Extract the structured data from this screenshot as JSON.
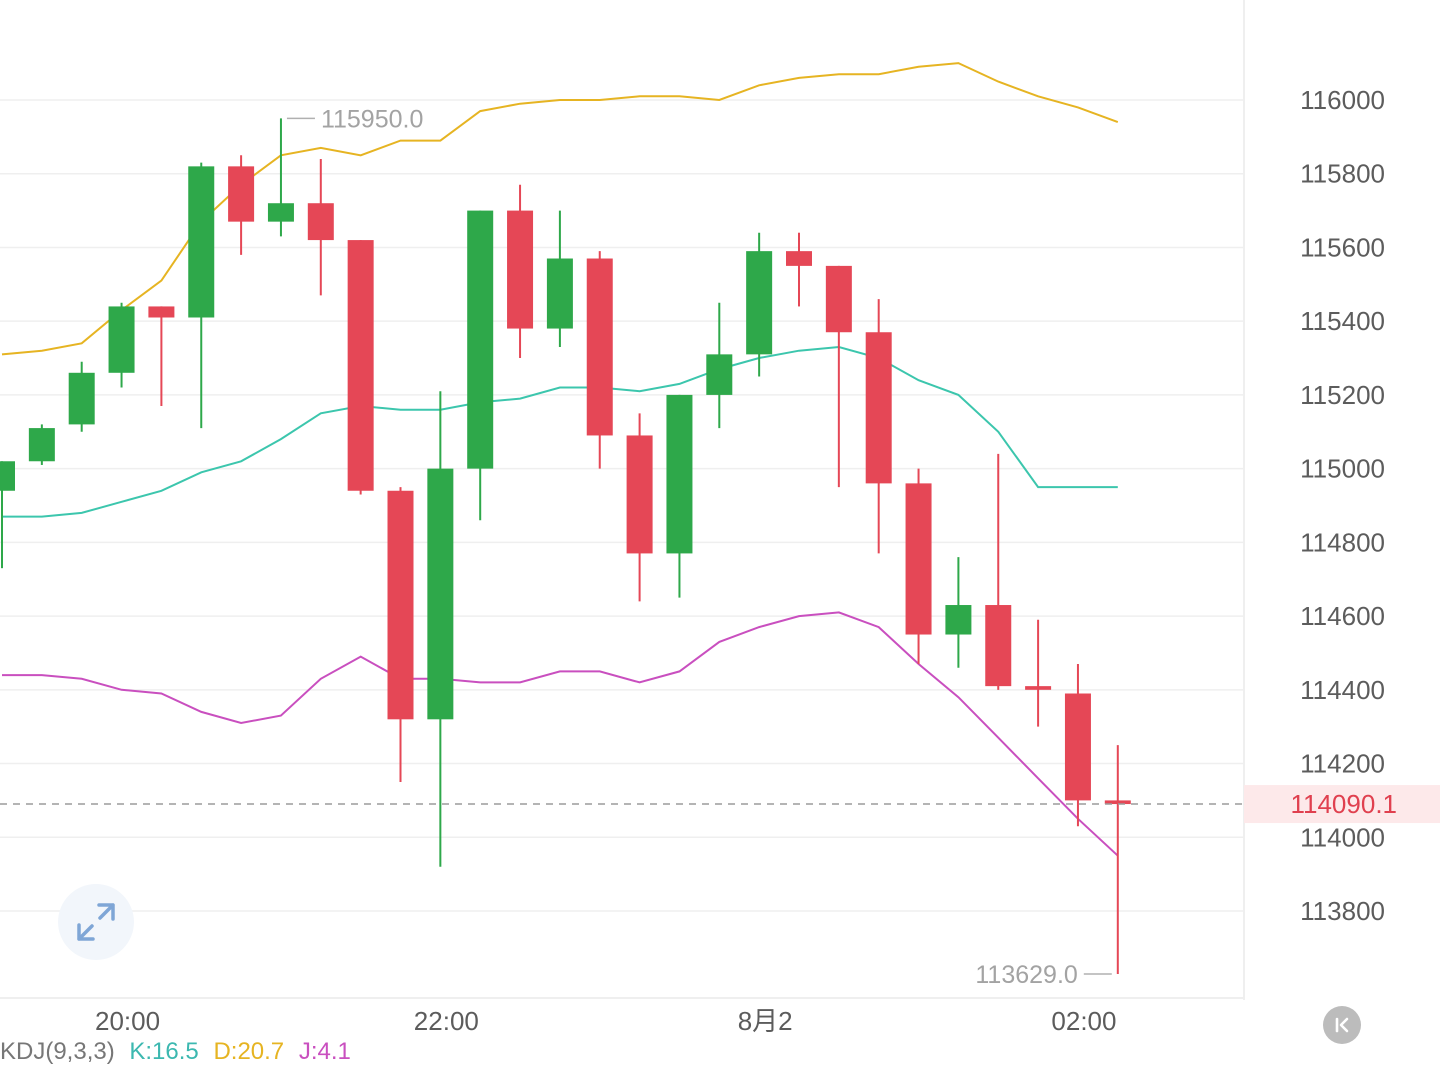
{
  "chart_data": {
    "type": "candlestick",
    "y_axis": {
      "ticks": [
        "116000",
        "115800",
        "115600",
        "115400",
        "115200",
        "115000",
        "114800",
        "114600",
        "114400",
        "114200",
        "114000",
        "113800"
      ],
      "ylim": [
        113560,
        116260
      ],
      "position": "right"
    },
    "x_axis": {
      "ticks": [
        {
          "label": "20:00",
          "index": 3
        },
        {
          "label": "22:00",
          "index": 11
        },
        {
          "label": "8月2",
          "index": 19
        },
        {
          "label": "02:00",
          "index": 27
        }
      ]
    },
    "candles": [
      {
        "open": 114940,
        "high": 115020,
        "low": 114730,
        "close": 115020
      },
      {
        "open": 115020,
        "high": 115120,
        "low": 115010,
        "close": 115110
      },
      {
        "open": 115120,
        "high": 115290,
        "low": 115100,
        "close": 115260
      },
      {
        "open": 115260,
        "high": 115450,
        "low": 115220,
        "close": 115440
      },
      {
        "open": 115440,
        "high": 115440,
        "low": 115170,
        "close": 115410
      },
      {
        "open": 115410,
        "high": 115830,
        "low": 115110,
        "close": 115820
      },
      {
        "open": 115820,
        "high": 115850,
        "low": 115580,
        "close": 115670
      },
      {
        "open": 115670,
        "high": 115950,
        "low": 115630,
        "close": 115720
      },
      {
        "open": 115720,
        "high": 115840,
        "low": 115470,
        "close": 115620
      },
      {
        "open": 115620,
        "high": 115620,
        "low": 114930,
        "close": 114940
      },
      {
        "open": 114940,
        "high": 114950,
        "low": 114150,
        "close": 114320
      },
      {
        "open": 114320,
        "high": 115210,
        "low": 113920,
        "close": 115000
      },
      {
        "open": 115000,
        "high": 115700,
        "low": 114860,
        "close": 115700
      },
      {
        "open": 115700,
        "high": 115770,
        "low": 115300,
        "close": 115380
      },
      {
        "open": 115380,
        "high": 115700,
        "low": 115330,
        "close": 115570
      },
      {
        "open": 115570,
        "high": 115590,
        "low": 115000,
        "close": 115090
      },
      {
        "open": 115090,
        "high": 115150,
        "low": 114640,
        "close": 114770
      },
      {
        "open": 114770,
        "high": 115200,
        "low": 114650,
        "close": 115200
      },
      {
        "open": 115200,
        "high": 115450,
        "low": 115110,
        "close": 115310
      },
      {
        "open": 115310,
        "high": 115640,
        "low": 115250,
        "close": 115590
      },
      {
        "open": 115590,
        "high": 115640,
        "low": 115440,
        "close": 115550
      },
      {
        "open": 115550,
        "high": 115550,
        "low": 114950,
        "close": 115370
      },
      {
        "open": 115370,
        "high": 115460,
        "low": 114770,
        "close": 114960
      },
      {
        "open": 114960,
        "high": 115000,
        "low": 114470,
        "close": 114550
      },
      {
        "open": 114550,
        "high": 114760,
        "low": 114460,
        "close": 114630
      },
      {
        "open": 114630,
        "high": 115040,
        "low": 114400,
        "close": 114410
      },
      {
        "open": 114410,
        "high": 114590,
        "low": 114300,
        "close": 114400
      },
      {
        "open": 114390,
        "high": 114470,
        "low": 114030,
        "close": 114100
      },
      {
        "open": 114100,
        "high": 114250,
        "low": 113629,
        "close": 114090.1
      }
    ],
    "series": [
      {
        "color": "#e6b422",
        "values": [
          115310,
          115320,
          115340,
          115430,
          115510,
          115670,
          115770,
          115850,
          115870,
          115850,
          115890,
          115890,
          115970,
          115990,
          116000,
          116000,
          116010,
          116010,
          116000,
          116040,
          116060,
          116070,
          116070,
          116090,
          116100,
          116050,
          116010,
          115980,
          115940
        ]
      },
      {
        "color": "#3cc6ad",
        "values": [
          114870,
          114870,
          114880,
          114910,
          114940,
          114990,
          115020,
          115080,
          115150,
          115170,
          115160,
          115160,
          115180,
          115190,
          115220,
          115220,
          115210,
          115230,
          115270,
          115300,
          115320,
          115330,
          115300,
          115240,
          115200,
          115100,
          114950,
          114950,
          114950
        ]
      },
      {
        "color": "#c94fbf",
        "values": [
          114440,
          114440,
          114430,
          114400,
          114390,
          114340,
          114310,
          114330,
          114430,
          114490,
          114430,
          114430,
          114420,
          114420,
          114450,
          114450,
          114420,
          114450,
          114530,
          114570,
          114600,
          114610,
          114570,
          114470,
          114380,
          114270,
          114160,
          114050,
          113950
        ]
      }
    ],
    "extremes": {
      "high_label": "115950.0",
      "high_index": 7,
      "low_label": "113629.0",
      "low_index": 28
    },
    "last_price": {
      "label": "114090.1",
      "value": 114090.1
    },
    "grid": true,
    "colors": {
      "up": "#2ea84a",
      "down": "#e54756",
      "grid": "#efefef",
      "dash": "#9c9c9c"
    }
  },
  "indicator": {
    "name": "KDJ(9,3,3)",
    "k": "K:16.5",
    "d": "D:20.7",
    "j": "J:4.1",
    "colors": {
      "name": "#777777",
      "k": "#3cb8b0",
      "d": "#e6b422",
      "j": "#c94fbf"
    }
  },
  "controls": {
    "expand_icon": "expand-arrows-icon",
    "back_icon": "skip-to-latest-icon"
  }
}
